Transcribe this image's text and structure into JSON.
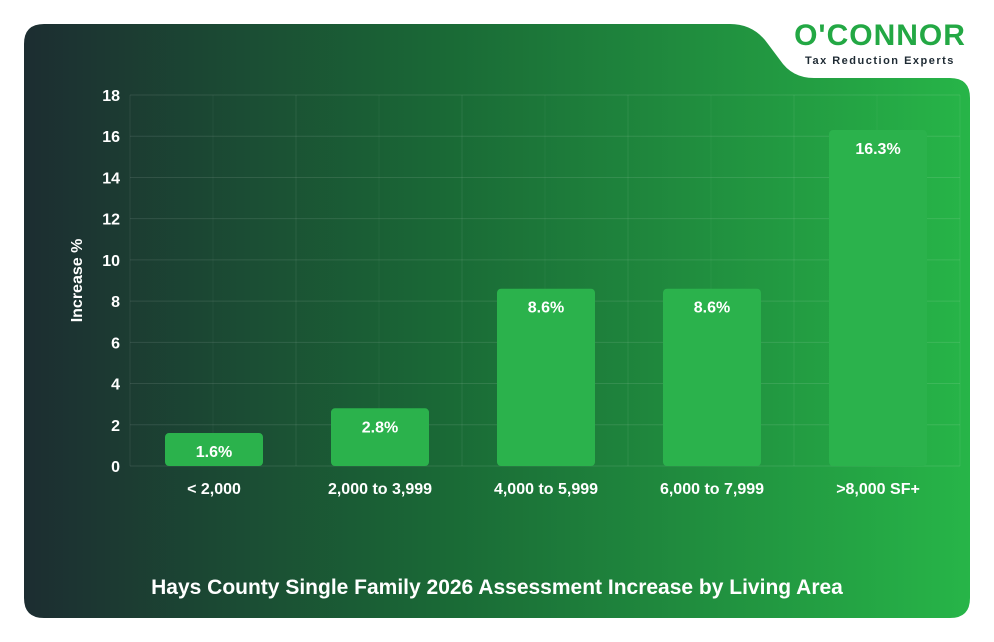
{
  "brand": {
    "name": "O'CONNOR",
    "tagline": "Tax Reduction Experts",
    "accent": "#23a844",
    "dark": "#1c2a30"
  },
  "chart_data": {
    "type": "bar",
    "title": "Hays County Single Family 2026 Assessment Increase by Living Area",
    "xlabel": "",
    "ylabel": "Increase %",
    "categories": [
      "< 2,000",
      "2,000 to 3,999",
      "4,000 to 5,999",
      "6,000 to 7,999",
      ">8,000 SF+"
    ],
    "values": [
      1.6,
      2.8,
      8.6,
      8.6,
      16.3
    ],
    "data_labels": [
      "1.6%",
      "2.8%",
      "8.6%",
      "8.6%",
      "16.3%"
    ],
    "ylim": [
      0,
      18
    ],
    "yticks": [
      0,
      2,
      4,
      6,
      8,
      10,
      12,
      14,
      16,
      18
    ],
    "grid": true,
    "bar_color": "#2bb24c"
  }
}
